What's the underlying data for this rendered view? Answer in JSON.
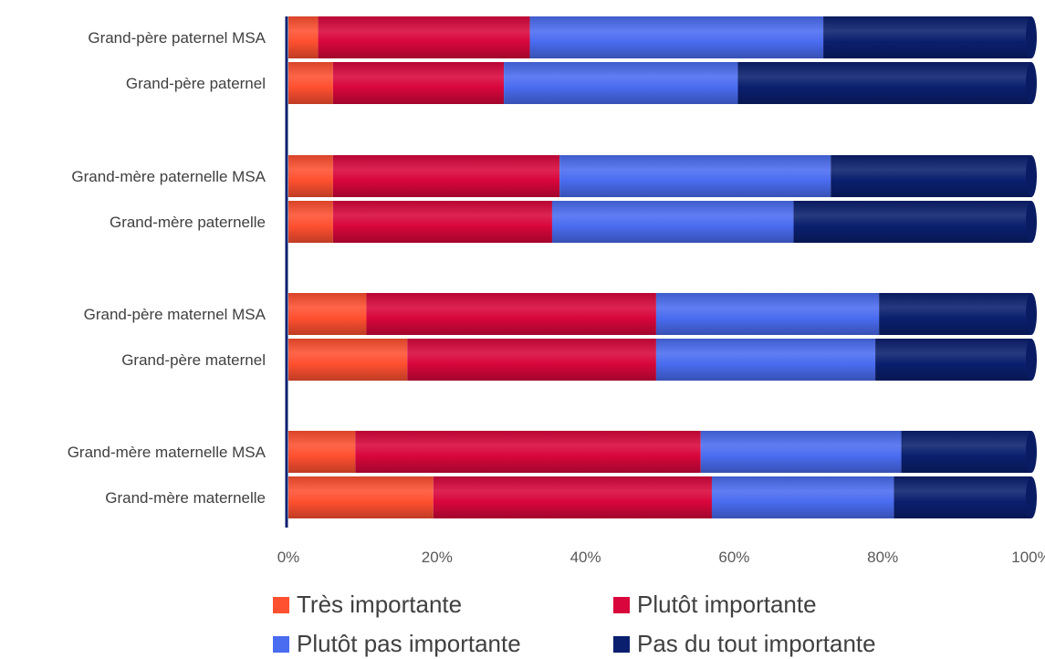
{
  "chart_data": {
    "type": "bar",
    "orientation": "horizontal",
    "stacked": "percent",
    "categories": [
      "Grand-père paternel MSA",
      "Grand-père paternel",
      "Grand-mère paternelle MSA",
      "Grand-mère paternelle",
      "Grand-père maternel MSA",
      "Grand-père maternel",
      "Grand-mère maternelle MSA",
      "Grand-mère maternelle"
    ],
    "series": [
      {
        "name": "Très importante",
        "color": "#FF5030",
        "values": [
          4,
          6,
          6,
          6,
          10.5,
          16,
          9,
          19.5
        ]
      },
      {
        "name": "Plutôt importante",
        "color": "#D8063C",
        "values": [
          28.5,
          23,
          30.5,
          29.5,
          39,
          33.5,
          46.5,
          37.5
        ]
      },
      {
        "name": "Plutôt pas importante",
        "color": "#4A6CF0",
        "values": [
          39.5,
          31.5,
          36.5,
          32.5,
          30,
          29.5,
          27,
          24.5
        ]
      },
      {
        "name": "Pas du tout importante",
        "color": "#0A1F6E",
        "values": [
          28,
          39.5,
          27,
          32,
          20.5,
          21,
          17.5,
          18.5
        ]
      }
    ],
    "x_ticks": [
      "0%",
      "20%",
      "40%",
      "60%",
      "80%",
      "100%"
    ],
    "xlim": [
      0,
      100
    ],
    "grid": false,
    "legend_position": "bottom"
  }
}
